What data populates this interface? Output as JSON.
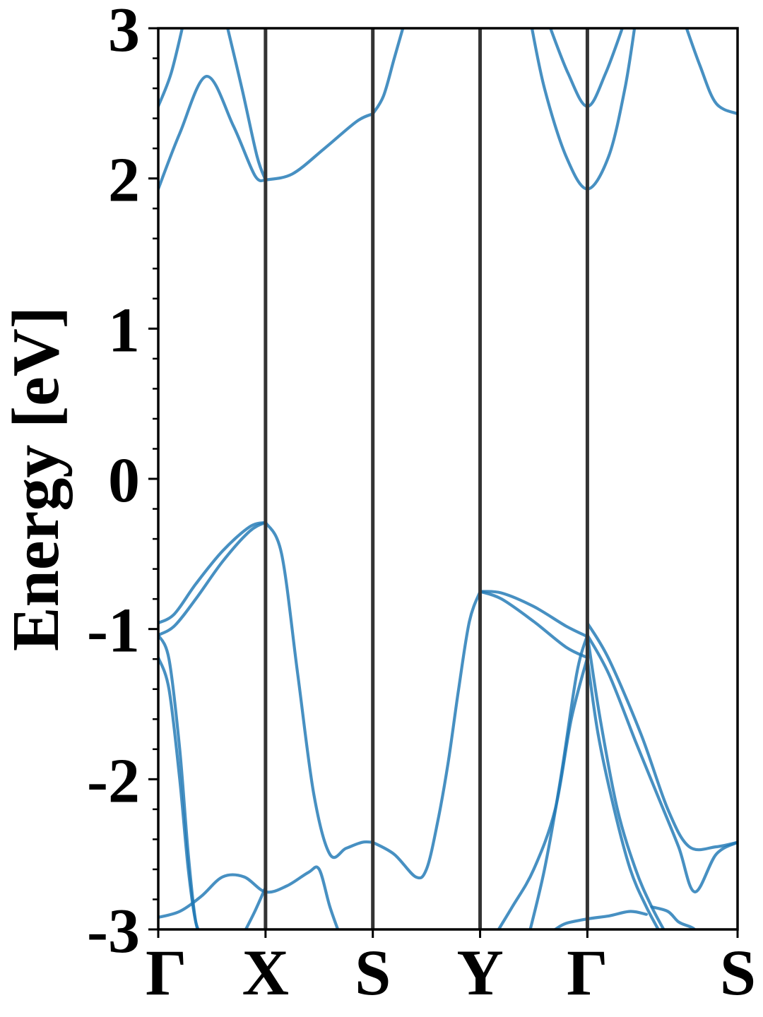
{
  "chart_data": {
    "type": "line",
    "title": "",
    "xlabel": "",
    "ylabel": "Energy [eV]",
    "ylim": [
      -3,
      3
    ],
    "yticks": [
      {
        "value": 3,
        "label": "3"
      },
      {
        "value": 2,
        "label": "2"
      },
      {
        "value": 1,
        "label": "1"
      },
      {
        "value": 0,
        "label": "0"
      },
      {
        "value": -1,
        "label": "-1"
      },
      {
        "value": -2,
        "label": "-2"
      },
      {
        "value": -3,
        "label": "-3"
      }
    ],
    "ytick_minor_step": 0.2,
    "xlim": [
      0,
      5.4
    ],
    "kpoints": [
      {
        "label": "Γ",
        "x": 0
      },
      {
        "label": "X",
        "x": 1
      },
      {
        "label": "S",
        "x": 2
      },
      {
        "label": "Y",
        "x": 3
      },
      {
        "label": "Γ",
        "x": 4
      },
      {
        "label": "S",
        "x": 5.4
      }
    ],
    "band_color": "#1f77b4",
    "divider_color": "#333333",
    "grid": false,
    "series": [
      {
        "x": [
          0,
          0.2,
          0.45,
          0.7,
          0.9,
          1.0
        ],
        "y": [
          1.93,
          2.3,
          2.68,
          2.35,
          2.02,
          1.99
        ]
      },
      {
        "x": [
          1.0,
          1.25,
          1.55,
          1.85,
          2.0
        ],
        "y": [
          1.99,
          2.03,
          2.2,
          2.38,
          2.43
        ]
      },
      {
        "x": [
          2.0,
          2.1,
          2.2,
          2.3
        ],
        "y": [
          2.43,
          2.55,
          2.8,
          3.05
        ]
      },
      {
        "x": [
          0,
          0.12,
          0.24
        ],
        "y": [
          2.48,
          2.7,
          3.05
        ]
      },
      {
        "x": [
          0.63,
          0.78,
          0.92,
          1.0
        ],
        "y": [
          3.05,
          2.6,
          2.15,
          1.99
        ]
      },
      {
        "x": [
          3.47,
          3.6,
          3.8,
          4.0,
          4.2,
          4.35,
          4.45
        ],
        "y": [
          3.05,
          2.6,
          2.15,
          1.93,
          2.15,
          2.6,
          3.05
        ]
      },
      {
        "x": [
          3.63,
          3.82,
          4.0,
          4.17,
          4.35
        ],
        "y": [
          3.05,
          2.7,
          2.48,
          2.7,
          3.05
        ]
      },
      {
        "x": [
          4.9,
          5.05,
          5.2,
          5.4
        ],
        "y": [
          3.05,
          2.75,
          2.5,
          2.43
        ]
      },
      {
        "x": [
          0,
          0.15,
          0.35,
          0.6,
          0.85,
          1.0
        ],
        "y": [
          -0.96,
          -0.9,
          -0.7,
          -0.48,
          -0.32,
          -0.29
        ]
      },
      {
        "x": [
          0,
          0.15,
          0.35,
          0.6,
          0.85,
          1.0
        ],
        "y": [
          -1.04,
          -0.98,
          -0.8,
          -0.55,
          -0.35,
          -0.29
        ]
      },
      {
        "x": [
          1.0,
          1.15,
          1.3,
          1.45,
          1.6,
          1.75,
          1.9,
          2.0
        ],
        "y": [
          -0.29,
          -0.5,
          -1.3,
          -2.1,
          -2.5,
          -2.46,
          -2.42,
          -2.42
        ]
      },
      {
        "x": [
          2.0,
          2.2,
          2.4,
          2.5,
          2.6,
          2.7,
          2.8,
          2.9,
          3.0
        ],
        "y": [
          -2.42,
          -2.5,
          -2.65,
          -2.6,
          -2.3,
          -1.9,
          -1.4,
          -0.95,
          -0.75
        ]
      },
      {
        "x": [
          3.0,
          3.2,
          3.5,
          3.8,
          4.0
        ],
        "y": [
          -0.75,
          -0.76,
          -0.85,
          -0.98,
          -1.05
        ]
      },
      {
        "x": [
          3.0,
          3.2,
          3.5,
          3.8,
          4.0
        ],
        "y": [
          -0.75,
          -0.8,
          -0.95,
          -1.12,
          -1.19
        ]
      },
      {
        "x": [
          4.0,
          4.2,
          4.5,
          4.75,
          4.95,
          5.2,
          5.4
        ],
        "y": [
          -0.96,
          -1.2,
          -1.7,
          -2.2,
          -2.45,
          -2.45,
          -2.42
        ]
      },
      {
        "x": [
          4.0,
          4.2,
          4.45,
          4.65,
          4.85,
          5.0,
          5.2,
          5.4
        ],
        "y": [
          -1.04,
          -1.3,
          -1.75,
          -2.1,
          -2.45,
          -2.75,
          -2.5,
          -2.42
        ]
      },
      {
        "x": [
          4.0,
          4.12,
          4.28,
          4.45,
          4.6,
          4.75
        ],
        "y": [
          -1.04,
          -1.6,
          -2.2,
          -2.6,
          -2.85,
          -3.05
        ]
      },
      {
        "x": [
          4.0,
          4.1,
          4.25,
          4.4,
          4.55,
          4.7
        ],
        "y": [
          -1.2,
          -1.7,
          -2.2,
          -2.6,
          -2.85,
          -3.05
        ]
      },
      {
        "x": [
          3.45,
          3.6,
          3.75,
          3.9,
          4.0
        ],
        "y": [
          -3.05,
          -2.6,
          -2.0,
          -1.3,
          -1.04
        ]
      },
      {
        "x": [
          3.13,
          3.3,
          3.5,
          3.7,
          3.85,
          4.0
        ],
        "y": [
          -3.05,
          -2.85,
          -2.6,
          -2.2,
          -1.6,
          -1.19
        ]
      },
      {
        "x": [
          0,
          0.2,
          0.4,
          0.6,
          0.8,
          1.0,
          1.2,
          1.4,
          1.5,
          1.6,
          1.7
        ],
        "y": [
          -2.92,
          -2.88,
          -2.78,
          -2.65,
          -2.65,
          -2.75,
          -2.71,
          -2.62,
          -2.6,
          -2.85,
          -3.05
        ]
      },
      {
        "x": [
          0,
          0.1,
          0.2,
          0.28,
          0.35,
          0.42
        ],
        "y": [
          -1.04,
          -1.2,
          -1.8,
          -2.5,
          -2.95,
          -3.05
        ]
      },
      {
        "x": [
          0,
          0.1,
          0.2,
          0.28,
          0.35,
          0.42
        ],
        "y": [
          -1.19,
          -1.4,
          -2.0,
          -2.6,
          -2.95,
          -3.05
        ]
      },
      {
        "x": [
          0.78,
          0.9,
          1.0
        ],
        "y": [
          -3.05,
          -2.88,
          -2.72
        ]
      },
      {
        "x": [
          3.7,
          3.8,
          4.0,
          4.2,
          4.4,
          4.55
        ],
        "y": [
          -3.0,
          -2.96,
          -2.93,
          -2.91,
          -2.88,
          -2.9
        ]
      },
      {
        "x": [
          4.6,
          4.75,
          4.85,
          4.95,
          5.0,
          5.05
        ],
        "y": [
          -2.85,
          -2.88,
          -2.95,
          -2.98,
          -3.0,
          -3.05
        ]
      }
    ]
  }
}
